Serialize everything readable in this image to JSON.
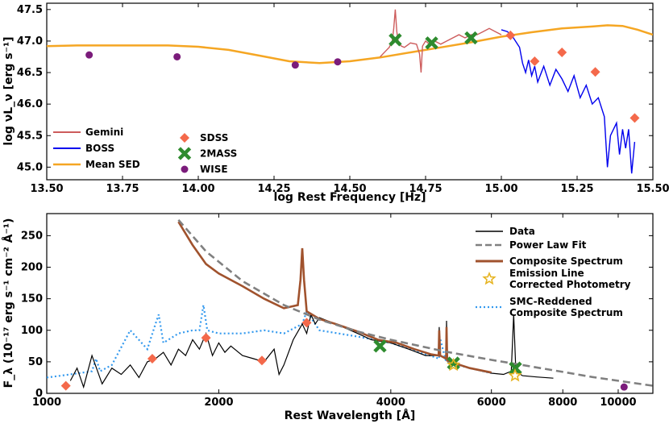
{
  "chart_data": [
    {
      "id": "top",
      "type": "line",
      "title": "",
      "xlabel": "log Rest Frequency [Hz]",
      "ylabel": "log νL_ν [erg s⁻¹]",
      "xlim": [
        13.5,
        15.5
      ],
      "ylim": [
        44.8,
        47.6
      ],
      "xticks": [
        13.5,
        13.75,
        14.0,
        14.25,
        14.5,
        14.75,
        15.0,
        15.25,
        15.5
      ],
      "xtick_labels": [
        "13.50",
        "13.75",
        "14.00",
        "14.25",
        "14.50",
        "14.75",
        "15.00",
        "15.25",
        "15.50"
      ],
      "yticks": [
        45.0,
        45.5,
        46.0,
        46.5,
        47.0,
        47.5
      ],
      "ytick_labels": [
        "45.0",
        "45.5",
        "46.0",
        "46.5",
        "47.0",
        "47.5"
      ],
      "colors": {
        "gemini": "#cd5c5c",
        "boss": "#0000ee",
        "mean_sed": "#f5a623",
        "sdss": "#f4694b",
        "twomass": "#2e8b2e",
        "wise": "#7b1c7b"
      },
      "legend_left": [
        {
          "label": "Gemini",
          "key": "gemini",
          "kind": "line"
        },
        {
          "label": "BOSS",
          "key": "boss",
          "kind": "line"
        },
        {
          "label": "Mean SED",
          "key": "mean_sed",
          "kind": "line"
        }
      ],
      "legend_right": [
        {
          "label": "SDSS",
          "key": "sdss",
          "kind": "diamond"
        },
        {
          "label": "2MASS",
          "key": "twomass",
          "kind": "cross"
        },
        {
          "label": "WISE",
          "key": "wise",
          "kind": "circle"
        }
      ],
      "series": {
        "mean_sed": {
          "x": [
            13.5,
            13.6,
            13.7,
            13.8,
            13.9,
            14.0,
            14.1,
            14.2,
            14.3,
            14.4,
            14.5,
            14.6,
            14.7,
            14.8,
            14.9,
            15.0,
            15.1,
            15.2,
            15.3,
            15.35,
            15.4,
            15.45,
            15.5
          ],
          "y": [
            46.92,
            46.93,
            46.93,
            46.93,
            46.93,
            46.91,
            46.86,
            46.77,
            46.68,
            46.65,
            46.68,
            46.74,
            46.82,
            46.9,
            46.98,
            47.07,
            47.14,
            47.2,
            47.23,
            47.25,
            47.24,
            47.18,
            47.1
          ]
        },
        "gemini": {
          "x": [
            14.6,
            14.62,
            14.63,
            14.64,
            14.645,
            14.65,
            14.655,
            14.66,
            14.67,
            14.68,
            14.7,
            14.72,
            14.73,
            14.735,
            14.74,
            14.75,
            14.76,
            14.78,
            14.8,
            14.82,
            14.84,
            14.86,
            14.88,
            14.9,
            14.92,
            14.94,
            14.96,
            14.98,
            15.0
          ],
          "y": [
            46.75,
            46.85,
            46.9,
            47.0,
            47.2,
            47.5,
            47.15,
            46.98,
            46.92,
            46.9,
            46.97,
            46.95,
            46.8,
            46.5,
            46.92,
            47.0,
            46.96,
            47.0,
            46.95,
            47.0,
            47.05,
            47.1,
            47.05,
            47.1,
            47.1,
            47.15,
            47.2,
            47.15,
            47.1
          ]
        },
        "boss": {
          "x": [
            15.0,
            15.02,
            15.04,
            15.06,
            15.07,
            15.08,
            15.09,
            15.1,
            15.11,
            15.12,
            15.14,
            15.16,
            15.18,
            15.2,
            15.22,
            15.24,
            15.26,
            15.28,
            15.3,
            15.32,
            15.34,
            15.35,
            15.36,
            15.38,
            15.39,
            15.4,
            15.41,
            15.42,
            15.43,
            15.44
          ],
          "y": [
            47.18,
            47.15,
            47.05,
            46.9,
            46.65,
            46.5,
            46.7,
            46.45,
            46.6,
            46.35,
            46.6,
            46.3,
            46.55,
            46.4,
            46.2,
            46.45,
            46.1,
            46.3,
            46.0,
            46.1,
            45.8,
            45.0,
            45.5,
            45.7,
            45.2,
            45.6,
            45.3,
            45.6,
            44.9,
            45.4
          ]
        },
        "sdss": {
          "x": [
            15.03,
            15.11,
            15.2,
            15.31,
            15.44
          ],
          "y": [
            47.09,
            46.68,
            46.82,
            46.51,
            45.78
          ]
        },
        "twomass": {
          "x": [
            14.65,
            14.77,
            14.9
          ],
          "y": [
            47.02,
            46.97,
            47.05
          ]
        },
        "wise": {
          "x": [
            13.64,
            13.93,
            14.32,
            14.46
          ],
          "y": [
            46.78,
            46.75,
            46.62,
            46.67
          ]
        }
      }
    },
    {
      "id": "bottom",
      "type": "line",
      "title": "",
      "xlabel": "Rest Wavelength [Å]",
      "ylabel": "F_λ (10⁻¹⁷ erg s⁻¹ cm⁻² Å⁻¹)",
      "xscale": "log",
      "xlim": [
        1000,
        11500
      ],
      "ylim": [
        0,
        285
      ],
      "xticks": [
        1000,
        2000,
        4000,
        6000,
        8000,
        10000
      ],
      "xtick_labels": [
        "1000",
        "2000",
        "4000",
        "6000",
        "8000",
        "10000"
      ],
      "yticks": [
        0,
        50,
        100,
        150,
        200,
        250
      ],
      "ytick_labels": [
        "0",
        "50",
        "100",
        "150",
        "200",
        "250"
      ],
      "colors": {
        "data": "#000000",
        "powerlaw": "#808080",
        "composite": "#a0522d",
        "reddened": "#3399ee",
        "sdss": "#f4694b",
        "twomass": "#2e8b2e",
        "wise": "#7b1c7b",
        "emission_star": "#e6b422"
      },
      "legend": [
        {
          "label": "Data",
          "key": "data",
          "kind": "line"
        },
        {
          "label": "Power Law Fit",
          "key": "powerlaw",
          "kind": "dashed"
        },
        {
          "label": "Composite Spectrum",
          "key": "composite",
          "kind": "thick"
        },
        {
          "label": "Emission Line",
          "label2": "Corrected Photometry",
          "key": "emission_star",
          "kind": "star"
        },
        {
          "label": "SMC-Reddened",
          "label2": "Composite Spectrum",
          "key": "reddened",
          "kind": "dotted"
        }
      ],
      "series": {
        "powerlaw": {
          "x": [
            1700,
            1900,
            2200,
            2600,
            3000,
            3500,
            4000,
            5000,
            6000,
            7000,
            8000,
            9000,
            10000,
            11500
          ],
          "y": [
            275,
            225,
            178,
            140,
            117,
            98,
            85,
            66,
            53,
            43,
            34,
            26,
            20,
            12
          ]
        },
        "composite": {
          "x": [
            1700,
            1800,
            1900,
            2000,
            2200,
            2400,
            2600,
            2750,
            2780,
            2800,
            2820,
            2850,
            3000,
            3200,
            3500,
            3800,
            4100,
            4400,
            4700,
            4850,
            4861,
            4880,
            5000,
            5007,
            5020,
            5200,
            5500,
            6000
          ],
          "y": [
            272,
            235,
            205,
            190,
            170,
            150,
            135,
            140,
            180,
            230,
            180,
            130,
            118,
            110,
            98,
            85,
            80,
            70,
            62,
            60,
            100,
            60,
            55,
            105,
            52,
            47,
            40,
            33
          ]
        },
        "data": {
          "x": [
            1100,
            1130,
            1160,
            1200,
            1250,
            1300,
            1350,
            1400,
            1450,
            1500,
            1550,
            1600,
            1650,
            1700,
            1750,
            1800,
            1850,
            1900,
            1950,
            2000,
            2050,
            2100,
            2200,
            2300,
            2400,
            2500,
            2550,
            2600,
            2700,
            2800,
            2850,
            2900,
            2950,
            3000,
            3100,
            3200,
            3300,
            3500,
            3700,
            4000,
            4300,
            4600,
            4850,
            4861,
            4880,
            5000,
            5007,
            5020,
            5300,
            5600,
            6000,
            6300,
            6500,
            6563,
            6620,
            6800,
            7200,
            7700
          ],
          "y": [
            20,
            40,
            10,
            60,
            15,
            40,
            30,
            45,
            25,
            50,
            55,
            65,
            45,
            70,
            60,
            85,
            70,
            95,
            60,
            80,
            65,
            75,
            60,
            55,
            50,
            70,
            30,
            45,
            85,
            110,
            95,
            125,
            110,
            120,
            115,
            110,
            105,
            95,
            85,
            80,
            70,
            60,
            60,
            105,
            60,
            55,
            115,
            52,
            45,
            38,
            32,
            30,
            35,
            125,
            35,
            28,
            26,
            24
          ]
        },
        "reddened": {
          "x": [
            1000,
            1100,
            1200,
            1220,
            1240,
            1300,
            1400,
            1500,
            1550,
            1570,
            1600,
            1700,
            1800,
            1850,
            1880,
            1910,
            2000,
            2200,
            2400,
            2600,
            2800,
            2850,
            3000,
            3500,
            4000,
            4500,
            4861,
            4870,
            5000,
            5500,
            6000
          ],
          "y": [
            25,
            30,
            35,
            55,
            35,
            45,
            100,
            70,
            110,
            125,
            80,
            95,
            100,
            100,
            140,
            100,
            95,
            95,
            100,
            95,
            110,
            130,
            100,
            90,
            80,
            65,
            55,
            90,
            50,
            40,
            32
          ]
        },
        "sdss": {
          "x": [
            1080,
            1530,
            1900,
            2380,
            2850
          ],
          "y": [
            12,
            55,
            88,
            52,
            112
          ]
        },
        "twomass": {
          "x": [
            3830,
            5150,
            6610
          ],
          "y": [
            75,
            48,
            40
          ]
        },
        "wise": {
          "x": [
            10240
          ],
          "y": [
            10
          ]
        },
        "emission_star": {
          "x": [
            5150,
            6600
          ],
          "y": [
            45,
            28
          ]
        }
      }
    }
  ]
}
